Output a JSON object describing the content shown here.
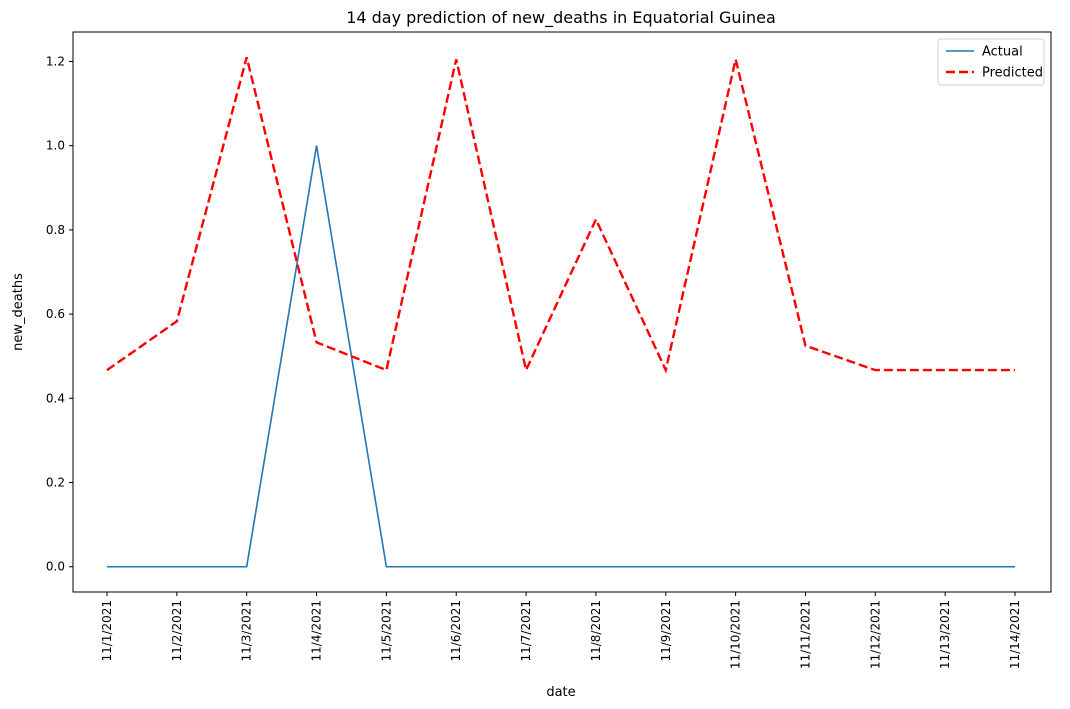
{
  "chart_data": {
    "type": "line",
    "title": "14 day prediction of new_deaths in Equatorial Guinea",
    "xlabel": "date",
    "ylabel": "new_deaths",
    "categories": [
      "11/1/2021",
      "11/2/2021",
      "11/3/2021",
      "11/4/2021",
      "11/5/2021",
      "11/6/2021",
      "11/7/2021",
      "11/8/2021",
      "11/9/2021",
      "11/10/2021",
      "11/11/2021",
      "11/12/2021",
      "11/13/2021",
      "11/14/2021"
    ],
    "y_ticks": [
      "0.0",
      "0.2",
      "0.4",
      "0.6",
      "0.8",
      "1.0",
      "1.2"
    ],
    "ylim": [
      -0.06,
      1.27
    ],
    "grid": false,
    "legend_position": "top-right",
    "series": [
      {
        "name": "Actual",
        "color": "#1f77b4",
        "style": "solid",
        "values": [
          0,
          0,
          0,
          1.0,
          0,
          0,
          0,
          0,
          0,
          0,
          0,
          0,
          0,
          0
        ]
      },
      {
        "name": "Predicted",
        "color": "#ff0000",
        "style": "dashed",
        "values": [
          0.467,
          0.583,
          1.21,
          0.533,
          0.467,
          1.205,
          0.467,
          0.825,
          0.467,
          1.205,
          0.525,
          0.467,
          0.467,
          0.467
        ]
      }
    ]
  }
}
